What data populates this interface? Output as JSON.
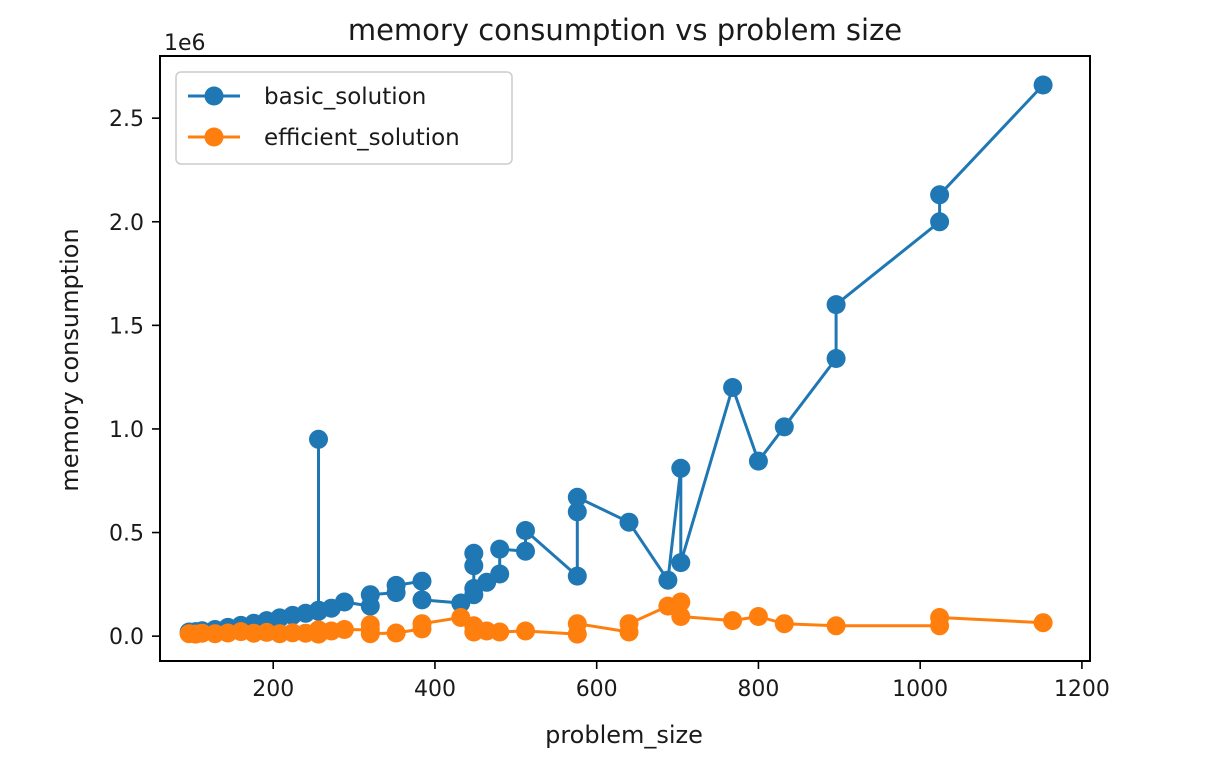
{
  "chart_data": {
    "type": "line",
    "title": "memory consumption vs problem size",
    "xlabel": "problem_size",
    "ylabel": "memory consumption",
    "offset_label": "1e6",
    "xlim": [
      60,
      1210
    ],
    "ylim": [
      -120000,
      2800000
    ],
    "x_ticks": [
      {
        "value": 200,
        "label": "200"
      },
      {
        "value": 400,
        "label": "400"
      },
      {
        "value": 600,
        "label": "600"
      },
      {
        "value": 800,
        "label": "800"
      },
      {
        "value": 1000,
        "label": "1000"
      },
      {
        "value": 1200,
        "label": "1200"
      }
    ],
    "y_ticks": [
      {
        "value": 0,
        "label": "0.0"
      },
      {
        "value": 500000,
        "label": "0.5"
      },
      {
        "value": 1000000,
        "label": "1.0"
      },
      {
        "value": 1500000,
        "label": "1.5"
      },
      {
        "value": 2000000,
        "label": "2.0"
      },
      {
        "value": 2500000,
        "label": "2.5"
      }
    ],
    "grid": false,
    "legend": "top-left",
    "series": [
      {
        "name": "basic_solution",
        "color": "#1f77b4",
        "points": [
          [
            96,
            20000
          ],
          [
            104,
            22000
          ],
          [
            112,
            26000
          ],
          [
            128,
            32000
          ],
          [
            144,
            42000
          ],
          [
            160,
            52000
          ],
          [
            176,
            62000
          ],
          [
            192,
            75000
          ],
          [
            208,
            88000
          ],
          [
            224,
            100000
          ],
          [
            240,
            110000
          ],
          [
            256,
            120000
          ],
          [
            256,
            950000
          ],
          [
            256,
            125000
          ],
          [
            272,
            135000
          ],
          [
            288,
            165000
          ],
          [
            320,
            145000
          ],
          [
            320,
            200000
          ],
          [
            352,
            210000
          ],
          [
            352,
            245000
          ],
          [
            384,
            265000
          ],
          [
            384,
            175000
          ],
          [
            432,
            160000
          ],
          [
            448,
            200000
          ],
          [
            448,
            340000
          ],
          [
            448,
            400000
          ],
          [
            448,
            230000
          ],
          [
            464,
            260000
          ],
          [
            480,
            300000
          ],
          [
            480,
            420000
          ],
          [
            512,
            410000
          ],
          [
            512,
            510000
          ],
          [
            576,
            290000
          ],
          [
            576,
            600000
          ],
          [
            576,
            670000
          ],
          [
            640,
            550000
          ],
          [
            688,
            270000
          ],
          [
            704,
            810000
          ],
          [
            704,
            355000
          ],
          [
            768,
            1200000
          ],
          [
            800,
            845000
          ],
          [
            832,
            1010000
          ],
          [
            896,
            1340000
          ],
          [
            896,
            1600000
          ],
          [
            1024,
            2000000
          ],
          [
            1024,
            2130000
          ],
          [
            1152,
            2660000
          ]
        ]
      },
      {
        "name": "efficient_solution",
        "color": "#ff7f0e",
        "points": [
          [
            96,
            12000
          ],
          [
            104,
            10000
          ],
          [
            112,
            14000
          ],
          [
            128,
            12000
          ],
          [
            144,
            15000
          ],
          [
            160,
            22000
          ],
          [
            176,
            14000
          ],
          [
            192,
            18000
          ],
          [
            208,
            12000
          ],
          [
            224,
            16000
          ],
          [
            240,
            14000
          ],
          [
            256,
            30000
          ],
          [
            256,
            10000
          ],
          [
            272,
            25000
          ],
          [
            288,
            32000
          ],
          [
            320,
            30000
          ],
          [
            320,
            55000
          ],
          [
            320,
            12000
          ],
          [
            352,
            15000
          ],
          [
            384,
            35000
          ],
          [
            384,
            60000
          ],
          [
            432,
            90000
          ],
          [
            448,
            50000
          ],
          [
            448,
            20000
          ],
          [
            464,
            25000
          ],
          [
            480,
            20000
          ],
          [
            512,
            25000
          ],
          [
            576,
            10000
          ],
          [
            576,
            60000
          ],
          [
            640,
            20000
          ],
          [
            640,
            60000
          ],
          [
            688,
            145000
          ],
          [
            704,
            165000
          ],
          [
            704,
            95000
          ],
          [
            768,
            75000
          ],
          [
            800,
            95000
          ],
          [
            832,
            60000
          ],
          [
            896,
            50000
          ],
          [
            1024,
            50000
          ],
          [
            1024,
            90000
          ],
          [
            1152,
            65000
          ]
        ]
      }
    ]
  }
}
